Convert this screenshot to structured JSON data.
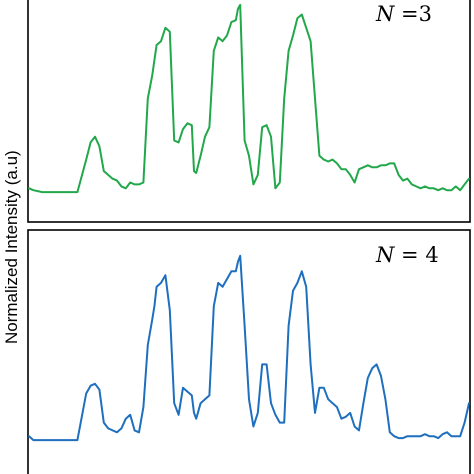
{
  "chart_data": {
    "type": "line",
    "ylabel": "Normalized Intensity (a.u)",
    "panels": [
      {
        "label_var": "N",
        "label_rest": " =3",
        "color": "#22a84a",
        "ylim": [
          0,
          1
        ],
        "series": [
          {
            "x": [
              0,
              0.01,
              0.03,
              0.05,
              0.09,
              0.11,
              0.13,
              0.14,
              0.15,
              0.16,
              0.17,
              0.18,
              0.19,
              0.2,
              0.21,
              0.22,
              0.23,
              0.24,
              0.25,
              0.26,
              0.27,
              0.28,
              0.285,
              0.29,
              0.3,
              0.31,
              0.32,
              0.33,
              0.34,
              0.35,
              0.36,
              0.37,
              0.375,
              0.38,
              0.39,
              0.4,
              0.41,
              0.42,
              0.43,
              0.44,
              0.45,
              0.46,
              0.47,
              0.475,
              0.48,
              0.49,
              0.5,
              0.51,
              0.52,
              0.53,
              0.54,
              0.55,
              0.56,
              0.57,
              0.58,
              0.59,
              0.6,
              0.61,
              0.62,
              0.63,
              0.64,
              0.65,
              0.66,
              0.67,
              0.68,
              0.69,
              0.7,
              0.71,
              0.72,
              0.73,
              0.74,
              0.75,
              0.76,
              0.77,
              0.78,
              0.79,
              0.8,
              0.81,
              0.82,
              0.83,
              0.84,
              0.85,
              0.86,
              0.87,
              0.88,
              0.89,
              0.9,
              0.91,
              0.92,
              0.93,
              0.94,
              0.95,
              0.96,
              0.97,
              0.98,
              0.99,
              1.0
            ],
            "y": [
              0.03,
              0.02,
              0.01,
              0.01,
              0.01,
              0.01,
              0.18,
              0.27,
              0.3,
              0.25,
              0.12,
              0.1,
              0.08,
              0.07,
              0.04,
              0.03,
              0.06,
              0.05,
              0.05,
              0.06,
              0.5,
              0.62,
              0.7,
              0.78,
              0.8,
              0.87,
              0.85,
              0.28,
              0.27,
              0.34,
              0.37,
              0.36,
              0.12,
              0.11,
              0.2,
              0.3,
              0.35,
              0.75,
              0.82,
              0.8,
              0.83,
              0.9,
              0.91,
              0.97,
              0.99,
              0.28,
              0.2,
              0.05,
              0.1,
              0.35,
              0.36,
              0.3,
              0.03,
              0.06,
              0.5,
              0.75,
              0.83,
              0.92,
              0.94,
              0.87,
              0.8,
              0.5,
              0.2,
              0.18,
              0.17,
              0.18,
              0.16,
              0.13,
              0.13,
              0.1,
              0.06,
              0.13,
              0.14,
              0.15,
              0.14,
              0.14,
              0.15,
              0.15,
              0.16,
              0.16,
              0.1,
              0.07,
              0.08,
              0.05,
              0.04,
              0.03,
              0.04,
              0.03,
              0.03,
              0.02,
              0.03,
              0.02,
              0.02,
              0.04,
              0.02,
              0.05,
              0.08
            ]
          }
        ]
      },
      {
        "label_var": "N",
        "label_rest": " = 4",
        "color": "#1f6fbf",
        "ylim": [
          0,
          1
        ],
        "series": [
          {
            "x": [
              0,
              0.01,
              0.03,
              0.05,
              0.09,
              0.11,
              0.13,
              0.14,
              0.15,
              0.16,
              0.17,
              0.18,
              0.19,
              0.2,
              0.21,
              0.22,
              0.23,
              0.24,
              0.25,
              0.26,
              0.27,
              0.28,
              0.285,
              0.29,
              0.3,
              0.31,
              0.32,
              0.33,
              0.34,
              0.35,
              0.36,
              0.37,
              0.375,
              0.38,
              0.39,
              0.4,
              0.41,
              0.42,
              0.43,
              0.44,
              0.45,
              0.46,
              0.47,
              0.475,
              0.48,
              0.49,
              0.5,
              0.51,
              0.52,
              0.53,
              0.54,
              0.55,
              0.56,
              0.57,
              0.58,
              0.59,
              0.6,
              0.61,
              0.62,
              0.63,
              0.64,
              0.65,
              0.66,
              0.67,
              0.68,
              0.69,
              0.7,
              0.71,
              0.72,
              0.73,
              0.74,
              0.75,
              0.76,
              0.77,
              0.78,
              0.79,
              0.8,
              0.81,
              0.82,
              0.83,
              0.84,
              0.85,
              0.86,
              0.87,
              0.88,
              0.89,
              0.9,
              0.91,
              0.92,
              0.93,
              0.94,
              0.95,
              0.96,
              0.97,
              0.98,
              0.99,
              1.0
            ],
            "y": [
              0.03,
              0.01,
              0.01,
              0.01,
              0.01,
              0.01,
              0.25,
              0.29,
              0.3,
              0.27,
              0.1,
              0.07,
              0.06,
              0.05,
              0.07,
              0.12,
              0.14,
              0.06,
              0.05,
              0.18,
              0.5,
              0.63,
              0.7,
              0.8,
              0.82,
              0.86,
              0.68,
              0.2,
              0.14,
              0.28,
              0.26,
              0.24,
              0.15,
              0.12,
              0.2,
              0.22,
              0.24,
              0.7,
              0.82,
              0.8,
              0.84,
              0.88,
              0.88,
              0.93,
              0.96,
              0.6,
              0.22,
              0.08,
              0.15,
              0.4,
              0.4,
              0.2,
              0.14,
              0.1,
              0.1,
              0.6,
              0.78,
              0.82,
              0.88,
              0.8,
              0.4,
              0.15,
              0.28,
              0.28,
              0.22,
              0.2,
              0.18,
              0.12,
              0.13,
              0.15,
              0.08,
              0.06,
              0.2,
              0.33,
              0.38,
              0.4,
              0.34,
              0.22,
              0.05,
              0.03,
              0.02,
              0.02,
              0.03,
              0.03,
              0.03,
              0.03,
              0.04,
              0.03,
              0.03,
              0.02,
              0.04,
              0.05,
              0.03,
              0.03,
              0.03,
              0.1,
              0.2
            ]
          }
        ]
      }
    ]
  }
}
